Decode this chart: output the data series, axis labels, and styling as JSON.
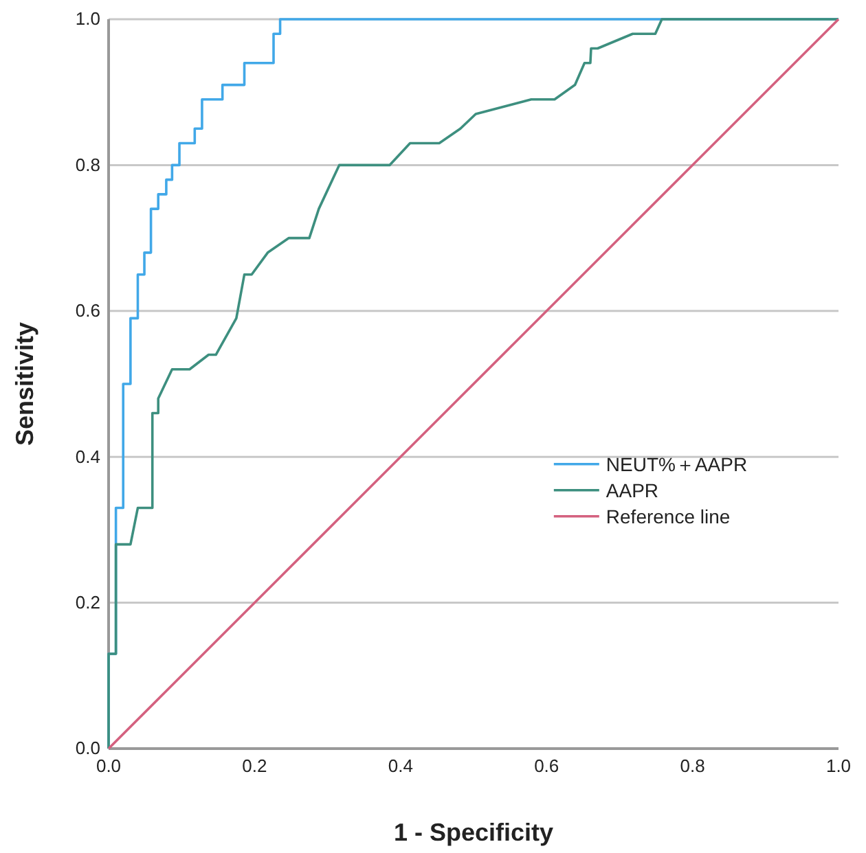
{
  "chart_data": {
    "type": "line",
    "xlabel": "1 - Specificity",
    "ylabel": "Sensitivity",
    "xlim": [
      0,
      1
    ],
    "ylim": [
      0,
      1
    ],
    "xticks": [
      {
        "value": 0,
        "label": "0.0"
      },
      {
        "value": 0.2,
        "label": "0.2"
      },
      {
        "value": 0.4,
        "label": "0.4"
      },
      {
        "value": 0.6,
        "label": "0.6"
      },
      {
        "value": 0.8,
        "label": "0.8"
      },
      {
        "value": 1,
        "label": "1.0"
      }
    ],
    "yticks": [
      {
        "value": 0,
        "label": "0.0"
      },
      {
        "value": 0.2,
        "label": "0.2"
      },
      {
        "value": 0.4,
        "label": "0.4"
      },
      {
        "value": 0.6,
        "label": "0.6"
      },
      {
        "value": 0.8,
        "label": "0.8"
      },
      {
        "value": 1,
        "label": "1.0"
      }
    ],
    "grid": "y",
    "legend": "right",
    "line_style": "solid",
    "marker": "none",
    "series": [
      {
        "name": "NEUT%＋AAPR",
        "color": "#41a8e8",
        "x": [
          0,
          0,
          0.01,
          0.01,
          0.02,
          0.02,
          0.03,
          0.03,
          0.04,
          0.04,
          0.049,
          0.049,
          0.058,
          0.058,
          0.068,
          0.068,
          0.079,
          0.079,
          0.087,
          0.087,
          0.097,
          0.097,
          0.118,
          0.118,
          0.128,
          0.128,
          0.156,
          0.156,
          0.186,
          0.186,
          0.226,
          0.226,
          0.235,
          0.235,
          1
        ],
        "values": [
          0,
          0.13,
          0.13,
          0.33,
          0.33,
          0.5,
          0.5,
          0.59,
          0.59,
          0.65,
          0.65,
          0.68,
          0.68,
          0.74,
          0.74,
          0.76,
          0.76,
          0.78,
          0.78,
          0.8,
          0.8,
          0.83,
          0.83,
          0.85,
          0.85,
          0.89,
          0.89,
          0.91,
          0.91,
          0.94,
          0.94,
          0.98,
          0.98,
          1,
          1
        ]
      },
      {
        "name": "AAPR",
        "color": "#3d8f7f",
        "x": [
          0,
          0,
          0.01,
          0.01,
          0.03,
          0.04,
          0.06,
          0.06,
          0.068,
          0.068,
          0.087,
          0.111,
          0.137,
          0.147,
          0.175,
          0.186,
          0.196,
          0.218,
          0.247,
          0.275,
          0.288,
          0.316,
          0.385,
          0.413,
          0.453,
          0.482,
          0.503,
          0.579,
          0.611,
          0.639,
          0.652,
          0.66,
          0.661,
          0.67,
          0.718,
          0.749,
          0.758,
          1
        ],
        "values": [
          0,
          0.13,
          0.13,
          0.28,
          0.28,
          0.33,
          0.33,
          0.46,
          0.46,
          0.48,
          0.52,
          0.52,
          0.54,
          0.54,
          0.59,
          0.65,
          0.65,
          0.68,
          0.7,
          0.7,
          0.74,
          0.8,
          0.8,
          0.83,
          0.83,
          0.85,
          0.87,
          0.89,
          0.89,
          0.91,
          0.94,
          0.94,
          0.96,
          0.96,
          0.98,
          0.98,
          1,
          1
        ]
      },
      {
        "name": "Reference line",
        "color": "#d4617f",
        "x": [
          0,
          1
        ],
        "values": [
          0,
          1
        ]
      }
    ]
  }
}
